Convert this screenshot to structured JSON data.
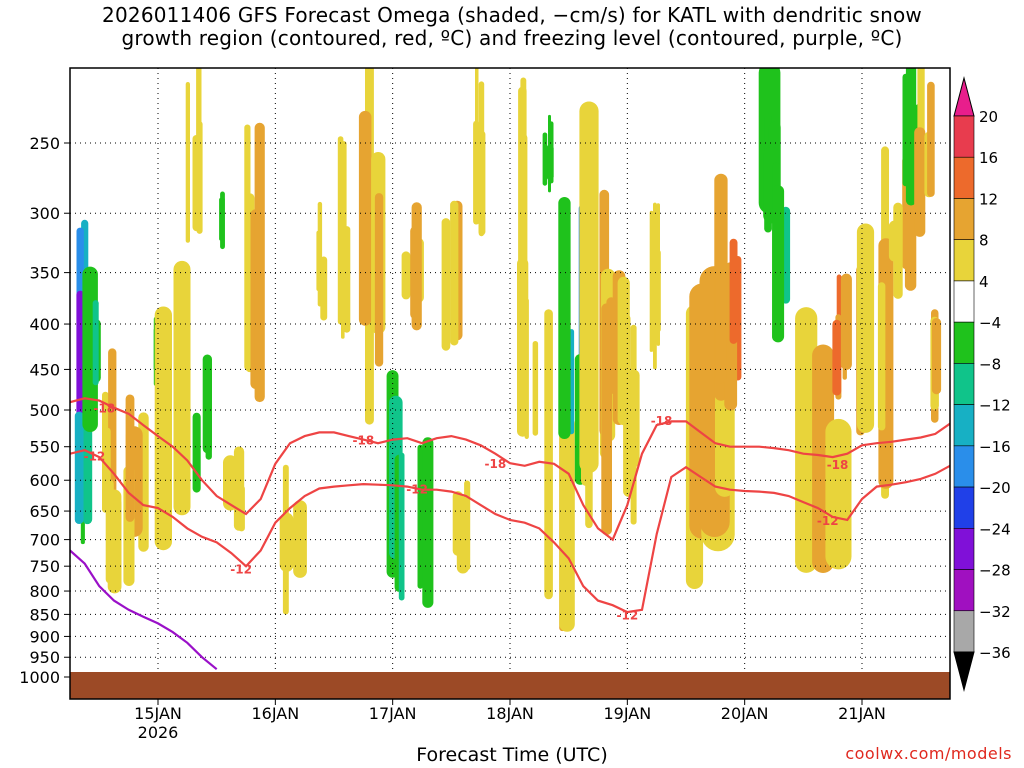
{
  "title": {
    "line1": "2026011406 GFS Forecast Omega (shaded, −cm/s) for KATL with dendritic snow",
    "line2": "growth region (contoured, red, ºC) and freezing level (contoured, purple, ºC)"
  },
  "credit": "coolwx.com/models",
  "chart_data": {
    "type": "heatmap",
    "xlabel": "Forecast Time (UTC)",
    "ylabel": "",
    "x_ticks": [
      {
        "label": "15JAN",
        "sub": "2026",
        "t": 24
      },
      {
        "label": "16JAN",
        "sub": "",
        "t": 48
      },
      {
        "label": "17JAN",
        "sub": "",
        "t": 72
      },
      {
        "label": "18JAN",
        "sub": "",
        "t": 96
      },
      {
        "label": "19JAN",
        "sub": "",
        "t": 120
      },
      {
        "label": "20JAN",
        "sub": "",
        "t": 144
      },
      {
        "label": "21JAN",
        "sub": "",
        "t": 168
      }
    ],
    "xlim": [
      6,
      186
    ],
    "y_levels": [
      250,
      300,
      350,
      400,
      450,
      500,
      550,
      600,
      650,
      700,
      750,
      800,
      850,
      900,
      950,
      1000
    ],
    "ylim": [
      200,
      1025
    ],
    "grid": true,
    "colorbar": {
      "labels": [
        "20",
        "16",
        "12",
        "8",
        "4",
        "−4",
        "−8",
        "−12",
        "−16",
        "−20",
        "−24",
        "−28",
        "−32",
        "−36"
      ],
      "colors": [
        "#e83c4e",
        "#ed6a2c",
        "#e6a431",
        "#e8d43a",
        "#ffffff",
        "#1fc21c",
        "#10c48a",
        "#17b0c4",
        "#2a8eea",
        "#2040e8",
        "#8010d8",
        "#a010c0",
        "#a8a8a8",
        "#000000"
      ],
      "top_color": "#e81e8c",
      "bottom_color": "#000000"
    },
    "ground_color": "#9c4a26",
    "contours": [
      {
        "label": "-18",
        "color": "#ee4444",
        "points": [
          [
            6,
            490
          ],
          [
            9,
            485
          ],
          [
            12,
            488
          ],
          [
            15,
            497
          ],
          [
            18,
            505
          ],
          [
            21,
            520
          ],
          [
            24,
            535
          ],
          [
            27,
            550
          ],
          [
            30,
            570
          ],
          [
            33,
            600
          ],
          [
            36,
            625
          ],
          [
            39,
            640
          ],
          [
            42,
            655
          ],
          [
            45,
            630
          ],
          [
            48,
            575
          ],
          [
            51,
            545
          ],
          [
            54,
            535
          ],
          [
            57,
            530
          ],
          [
            60,
            530
          ],
          [
            63,
            535
          ],
          [
            66,
            540
          ],
          [
            69,
            545
          ],
          [
            72,
            540
          ],
          [
            75,
            538
          ],
          [
            78,
            545
          ],
          [
            81,
            538
          ],
          [
            84,
            535
          ],
          [
            87,
            540
          ],
          [
            90,
            548
          ],
          [
            93,
            560
          ],
          [
            96,
            574
          ],
          [
            99,
            578
          ],
          [
            102,
            572
          ],
          [
            105,
            575
          ],
          [
            108,
            590
          ],
          [
            111,
            640
          ],
          [
            114,
            680
          ],
          [
            117,
            700
          ],
          [
            120,
            640
          ],
          [
            123,
            560
          ],
          [
            126,
            520
          ],
          [
            129,
            515
          ],
          [
            132,
            515
          ],
          [
            135,
            530
          ],
          [
            138,
            545
          ],
          [
            141,
            550
          ],
          [
            144,
            550
          ],
          [
            147,
            550
          ],
          [
            150,
            552
          ],
          [
            153,
            555
          ],
          [
            156,
            560
          ],
          [
            159,
            562
          ],
          [
            162,
            565
          ],
          [
            165,
            560
          ],
          [
            168,
            548
          ],
          [
            171,
            545
          ],
          [
            174,
            543
          ],
          [
            177,
            540
          ],
          [
            180,
            537
          ],
          [
            183,
            532
          ],
          [
            186,
            518
          ]
        ],
        "labels": [
          [
            13,
            497
          ],
          [
            66,
            540
          ],
          [
            93,
            574
          ],
          [
            127,
            513
          ],
          [
            163,
            575
          ]
        ]
      },
      {
        "label": "-12",
        "color": "#ee4444",
        "points": [
          [
            6,
            560
          ],
          [
            9,
            555
          ],
          [
            12,
            565
          ],
          [
            15,
            590
          ],
          [
            18,
            620
          ],
          [
            21,
            640
          ],
          [
            24,
            645
          ],
          [
            27,
            660
          ],
          [
            30,
            680
          ],
          [
            33,
            695
          ],
          [
            36,
            705
          ],
          [
            39,
            725
          ],
          [
            42,
            750
          ],
          [
            45,
            720
          ],
          [
            48,
            670
          ],
          [
            51,
            645
          ],
          [
            54,
            625
          ],
          [
            57,
            613
          ],
          [
            60,
            610
          ],
          [
            63,
            608
          ],
          [
            66,
            606
          ],
          [
            69,
            607
          ],
          [
            72,
            608
          ],
          [
            75,
            610
          ],
          [
            78,
            615
          ],
          [
            81,
            615
          ],
          [
            84,
            618
          ],
          [
            87,
            625
          ],
          [
            90,
            640
          ],
          [
            93,
            655
          ],
          [
            96,
            665
          ],
          [
            99,
            670
          ],
          [
            102,
            680
          ],
          [
            105,
            705
          ],
          [
            108,
            735
          ],
          [
            111,
            790
          ],
          [
            114,
            820
          ],
          [
            117,
            830
          ],
          [
            120,
            845
          ],
          [
            123,
            840
          ],
          [
            126,
            690
          ],
          [
            129,
            595
          ],
          [
            132,
            580
          ],
          [
            135,
            595
          ],
          [
            138,
            610
          ],
          [
            141,
            615
          ],
          [
            144,
            617
          ],
          [
            147,
            618
          ],
          [
            150,
            620
          ],
          [
            153,
            625
          ],
          [
            156,
            635
          ],
          [
            159,
            645
          ],
          [
            162,
            660
          ],
          [
            165,
            665
          ],
          [
            168,
            630
          ],
          [
            171,
            610
          ],
          [
            174,
            607
          ],
          [
            177,
            603
          ],
          [
            180,
            598
          ],
          [
            183,
            590
          ],
          [
            186,
            578
          ]
        ],
        "labels": [
          [
            11,
            563
          ],
          [
            41,
            755
          ],
          [
            77,
            613
          ],
          [
            120,
            850
          ],
          [
            161,
            665
          ]
        ]
      },
      {
        "label": "0",
        "color": "#9a10c8",
        "points": [
          [
            6,
            720
          ],
          [
            9,
            745
          ],
          [
            12,
            790
          ],
          [
            15,
            820
          ],
          [
            18,
            840
          ],
          [
            21,
            855
          ],
          [
            24,
            870
          ],
          [
            27,
            890
          ],
          [
            30,
            915
          ],
          [
            33,
            950
          ],
          [
            36,
            980
          ]
        ],
        "labels": []
      }
    ]
  }
}
